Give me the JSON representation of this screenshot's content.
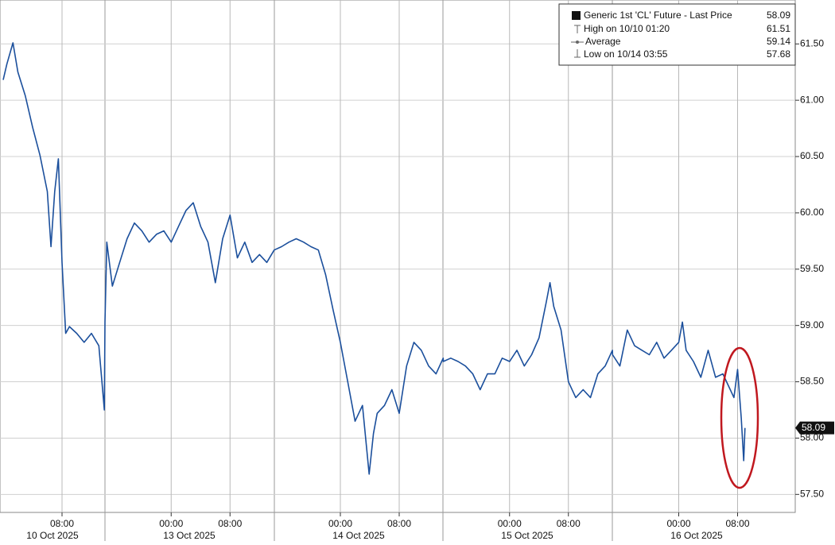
{
  "chart_data": {
    "type": "line",
    "series": [
      {
        "name": "Generic 1st 'CL' Future - Last Price",
        "color": "#1b4f9c",
        "x": [
          "10/10 00:00",
          "10/10 00:30",
          "10/10 01:20",
          "10/10 02:00",
          "10/10 03:00",
          "10/10 04:00",
          "10/10 05:00",
          "10/10 06:00",
          "10/10 06:30",
          "10/10 07:00",
          "10/10 07:30",
          "10/10 08:00",
          "10/10 08:30",
          "10/10 09:00",
          "10/10 10:00",
          "10/10 11:00",
          "10/10 12:00",
          "10/10 13:00",
          "10/10 13:45",
          "10/12 15:00",
          "10/12 15:15",
          "10/12 16:00",
          "10/12 17:00",
          "10/12 18:00",
          "10/12 19:00",
          "10/12 20:00",
          "10/12 21:00",
          "10/12 22:00",
          "10/12 23:00",
          "10/13 00:00",
          "10/13 01:00",
          "10/13 02:00",
          "10/13 03:00",
          "10/13 04:00",
          "10/13 05:00",
          "10/13 06:00",
          "10/13 07:00",
          "10/13 08:00",
          "10/13 09:00",
          "10/13 10:00",
          "10/13 11:00",
          "10/13 12:00",
          "10/13 13:00",
          "10/13 15:00",
          "10/13 16:00",
          "10/13 17:00",
          "10/13 18:00",
          "10/13 19:00",
          "10/13 20:00",
          "10/13 21:00",
          "10/13 22:00",
          "10/13 23:00",
          "10/14 00:00",
          "10/14 01:00",
          "10/14 02:00",
          "10/14 03:00",
          "10/14 03:55",
          "10/14 04:30",
          "10/14 05:00",
          "10/14 06:00",
          "10/14 07:00",
          "10/14 08:00",
          "10/14 09:00",
          "10/14 10:00",
          "10/14 11:00",
          "10/14 12:00",
          "10/14 13:00",
          "10/14 13:59",
          "10/14 15:00",
          "10/14 16:00",
          "10/14 17:00",
          "10/14 18:00",
          "10/14 19:00",
          "10/14 20:00",
          "10/14 21:00",
          "10/14 22:00",
          "10/14 23:00",
          "10/15 00:00",
          "10/15 01:00",
          "10/15 02:00",
          "10/15 03:00",
          "10/15 04:00",
          "10/15 05:00",
          "10/15 05:30",
          "10/15 06:00",
          "10/15 07:00",
          "10/15 08:00",
          "10/15 09:00",
          "10/15 10:00",
          "10/15 11:00",
          "10/15 12:00",
          "10/15 13:00",
          "10/15 13:59",
          "10/15 15:00",
          "10/15 16:00",
          "10/15 17:00",
          "10/15 18:00",
          "10/15 19:00",
          "10/15 20:00",
          "10/15 21:00",
          "10/15 22:00",
          "10/15 23:00",
          "10/16 00:00",
          "10/16 00:30",
          "10/16 01:00",
          "10/16 02:00",
          "10/16 03:00",
          "10/16 04:00",
          "10/16 05:00",
          "10/16 06:00",
          "10/16 07:00",
          "10/16 07:30",
          "10/16 08:00",
          "10/16 08:30",
          "10/16 08:50",
          "10/16 09:00"
        ],
        "values": [
          61.18,
          61.32,
          61.51,
          61.25,
          61.04,
          60.76,
          60.51,
          60.19,
          59.7,
          60.19,
          60.48,
          59.56,
          58.93,
          58.99,
          58.93,
          58.85,
          58.93,
          58.82,
          58.25,
          59.03,
          59.74,
          59.35,
          59.56,
          59.77,
          59.91,
          59.84,
          59.74,
          59.81,
          59.84,
          59.74,
          59.88,
          60.02,
          60.09,
          59.88,
          59.74,
          59.38,
          59.77,
          59.98,
          59.6,
          59.74,
          59.56,
          59.63,
          59.56,
          59.67,
          59.7,
          59.74,
          59.77,
          59.74,
          59.7,
          59.67,
          59.45,
          59.14,
          58.85,
          58.5,
          58.15,
          58.29,
          57.68,
          58.04,
          58.22,
          58.29,
          58.43,
          58.22,
          58.64,
          58.85,
          58.78,
          58.64,
          58.57,
          58.71,
          58.68,
          58.71,
          58.68,
          58.64,
          58.57,
          58.43,
          58.57,
          58.57,
          58.71,
          58.68,
          58.78,
          58.64,
          58.74,
          58.89,
          59.21,
          59.38,
          59.17,
          58.96,
          58.5,
          58.36,
          58.43,
          58.36,
          58.57,
          58.64,
          58.78,
          58.74,
          58.64,
          58.96,
          58.82,
          58.78,
          58.74,
          58.85,
          58.71,
          58.78,
          58.85,
          59.03,
          58.78,
          58.68,
          58.54,
          58.78,
          58.54,
          58.57,
          58.43,
          58.36,
          58.61,
          58.18,
          57.8,
          58.09
        ]
      }
    ],
    "last_price": 58.09,
    "stats": [
      {
        "label": "High on 10/10 01:20",
        "value": 61.51
      },
      {
        "label": "Average",
        "value": 59.14
      },
      {
        "label": "Low on 10/14 03:55",
        "value": 57.68
      }
    ],
    "ylim": [
      57.34,
      61.89
    ],
    "yticks": [
      {
        "value": 57.5,
        "label": "57.50"
      },
      {
        "value": 58,
        "label": "58.00"
      },
      {
        "value": 58.5,
        "label": "58.50"
      },
      {
        "value": 59,
        "label": "59.00"
      },
      {
        "value": 59.5,
        "label": "59.50"
      },
      {
        "value": 60,
        "label": "60.00"
      },
      {
        "value": 60.5,
        "label": "60.50"
      },
      {
        "value": 61,
        "label": "61.00"
      },
      {
        "value": 61.5,
        "label": "61.50"
      }
    ],
    "xticks": [
      {
        "value": "10/10 08:00",
        "label": "08:00"
      },
      {
        "value": "10/13 00:00",
        "label": "00:00"
      },
      {
        "value": "10/13 08:00",
        "label": "08:00"
      },
      {
        "value": "10/14 00:00",
        "label": "00:00"
      },
      {
        "value": "10/14 08:00",
        "label": "08:00"
      },
      {
        "value": "10/15 00:00",
        "label": "00:00"
      },
      {
        "value": "10/15 08:00",
        "label": "08:00"
      },
      {
        "value": "10/16 00:00",
        "label": "00:00"
      },
      {
        "value": "10/16 08:00",
        "label": "08:00"
      }
    ],
    "sessions": [
      "10 Oct 2025",
      "13 Oct 2025",
      "14 Oct 2025",
      "15 Oct 2025",
      "16 Oct 2025"
    ],
    "grid": true
  }
}
